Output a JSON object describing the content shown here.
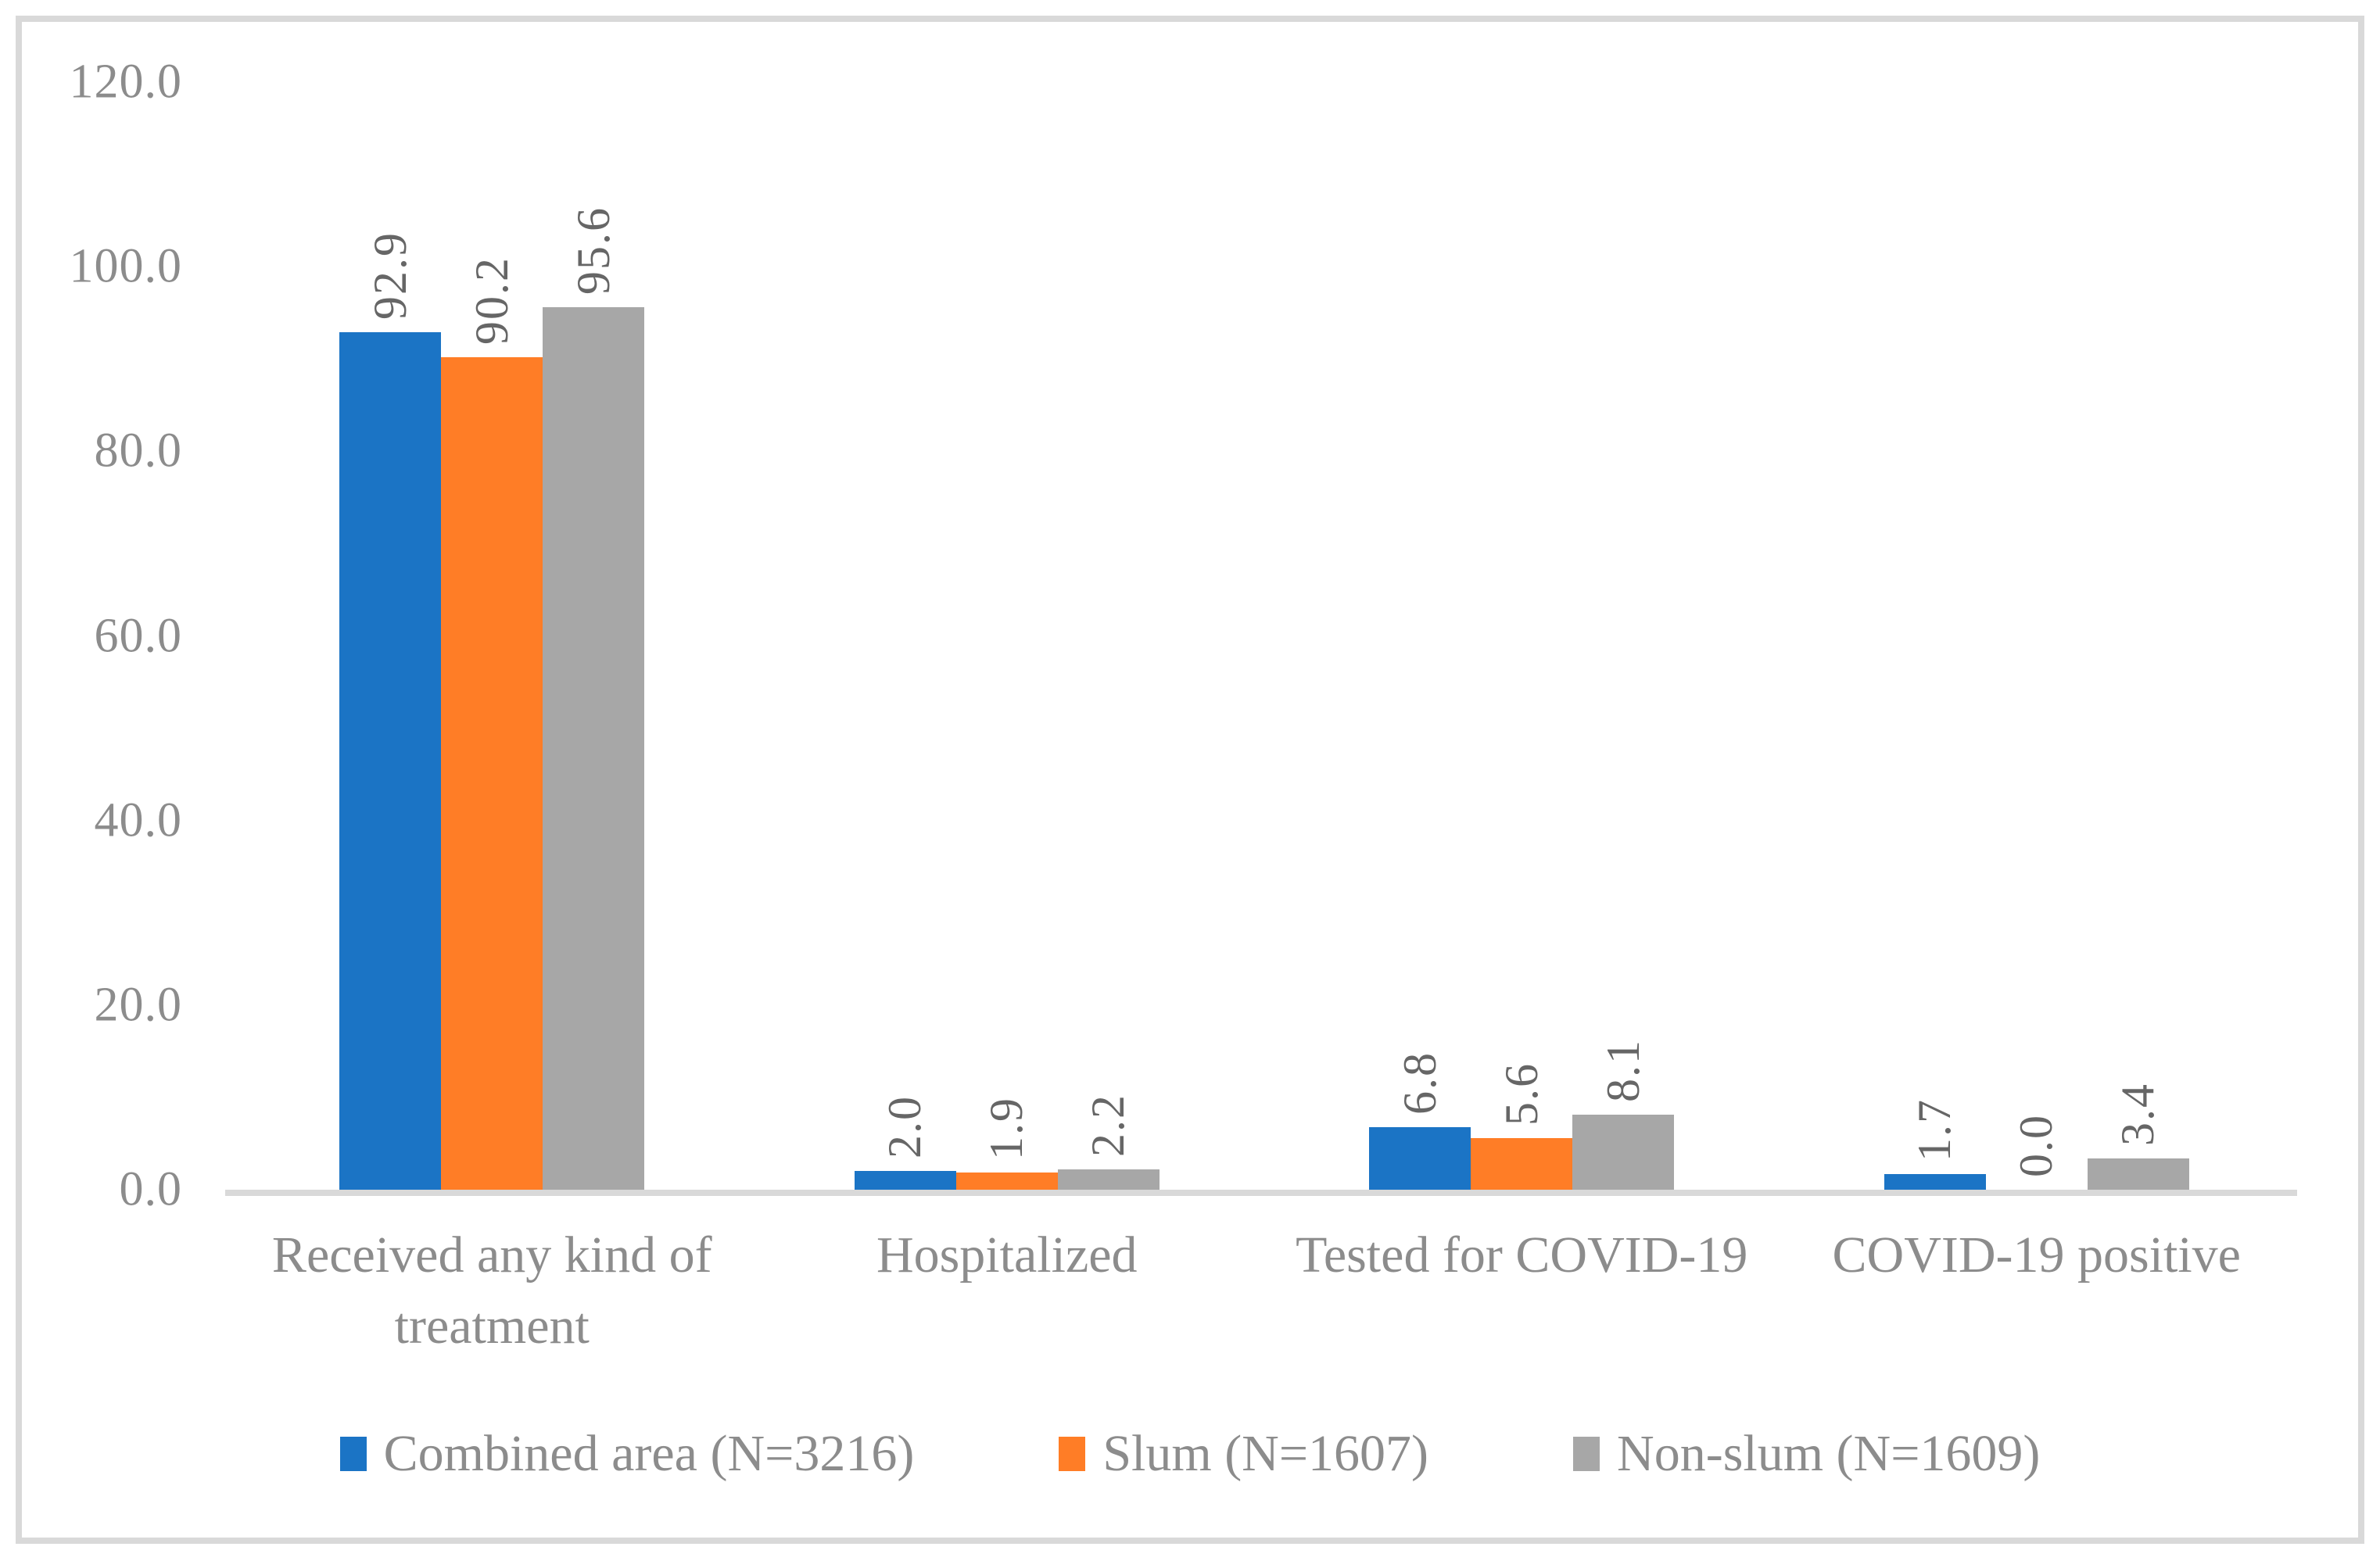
{
  "chart_data": {
    "type": "bar",
    "title": "",
    "categories": [
      "Received any kind of treatment",
      "Hospitalized",
      "Tested for COVID-19",
      "COVID-19 positive"
    ],
    "series": [
      {
        "name": "Combined area (N=3216)",
        "color": "#1b74c5",
        "values": [
          92.9,
          2.0,
          6.8,
          1.7
        ]
      },
      {
        "name": "Slum (N=1607)",
        "color": "#ff7d26",
        "values": [
          90.2,
          1.9,
          5.6,
          0.0
        ]
      },
      {
        "name": "Non-slum (N=1609)",
        "color": "#a7a7a7",
        "values": [
          95.6,
          2.2,
          8.1,
          3.4
        ]
      }
    ],
    "ylim": [
      0,
      120
    ],
    "ytick_step": 20,
    "yticks": [
      "0.0",
      "20.0",
      "40.0",
      "60.0",
      "80.0",
      "100.0",
      "120.0"
    ],
    "grid": false,
    "legend_position": "bottom",
    "data_labels": {
      "rotation": -90,
      "decimals": 1
    }
  },
  "colors": {
    "frame_border": "#d9d9d9",
    "axis_line": "#d9d9d9",
    "tick_label": "#8c8c8c",
    "category_label": "#8c8c8c",
    "data_label": "#666666",
    "background": "#ffffff"
  }
}
